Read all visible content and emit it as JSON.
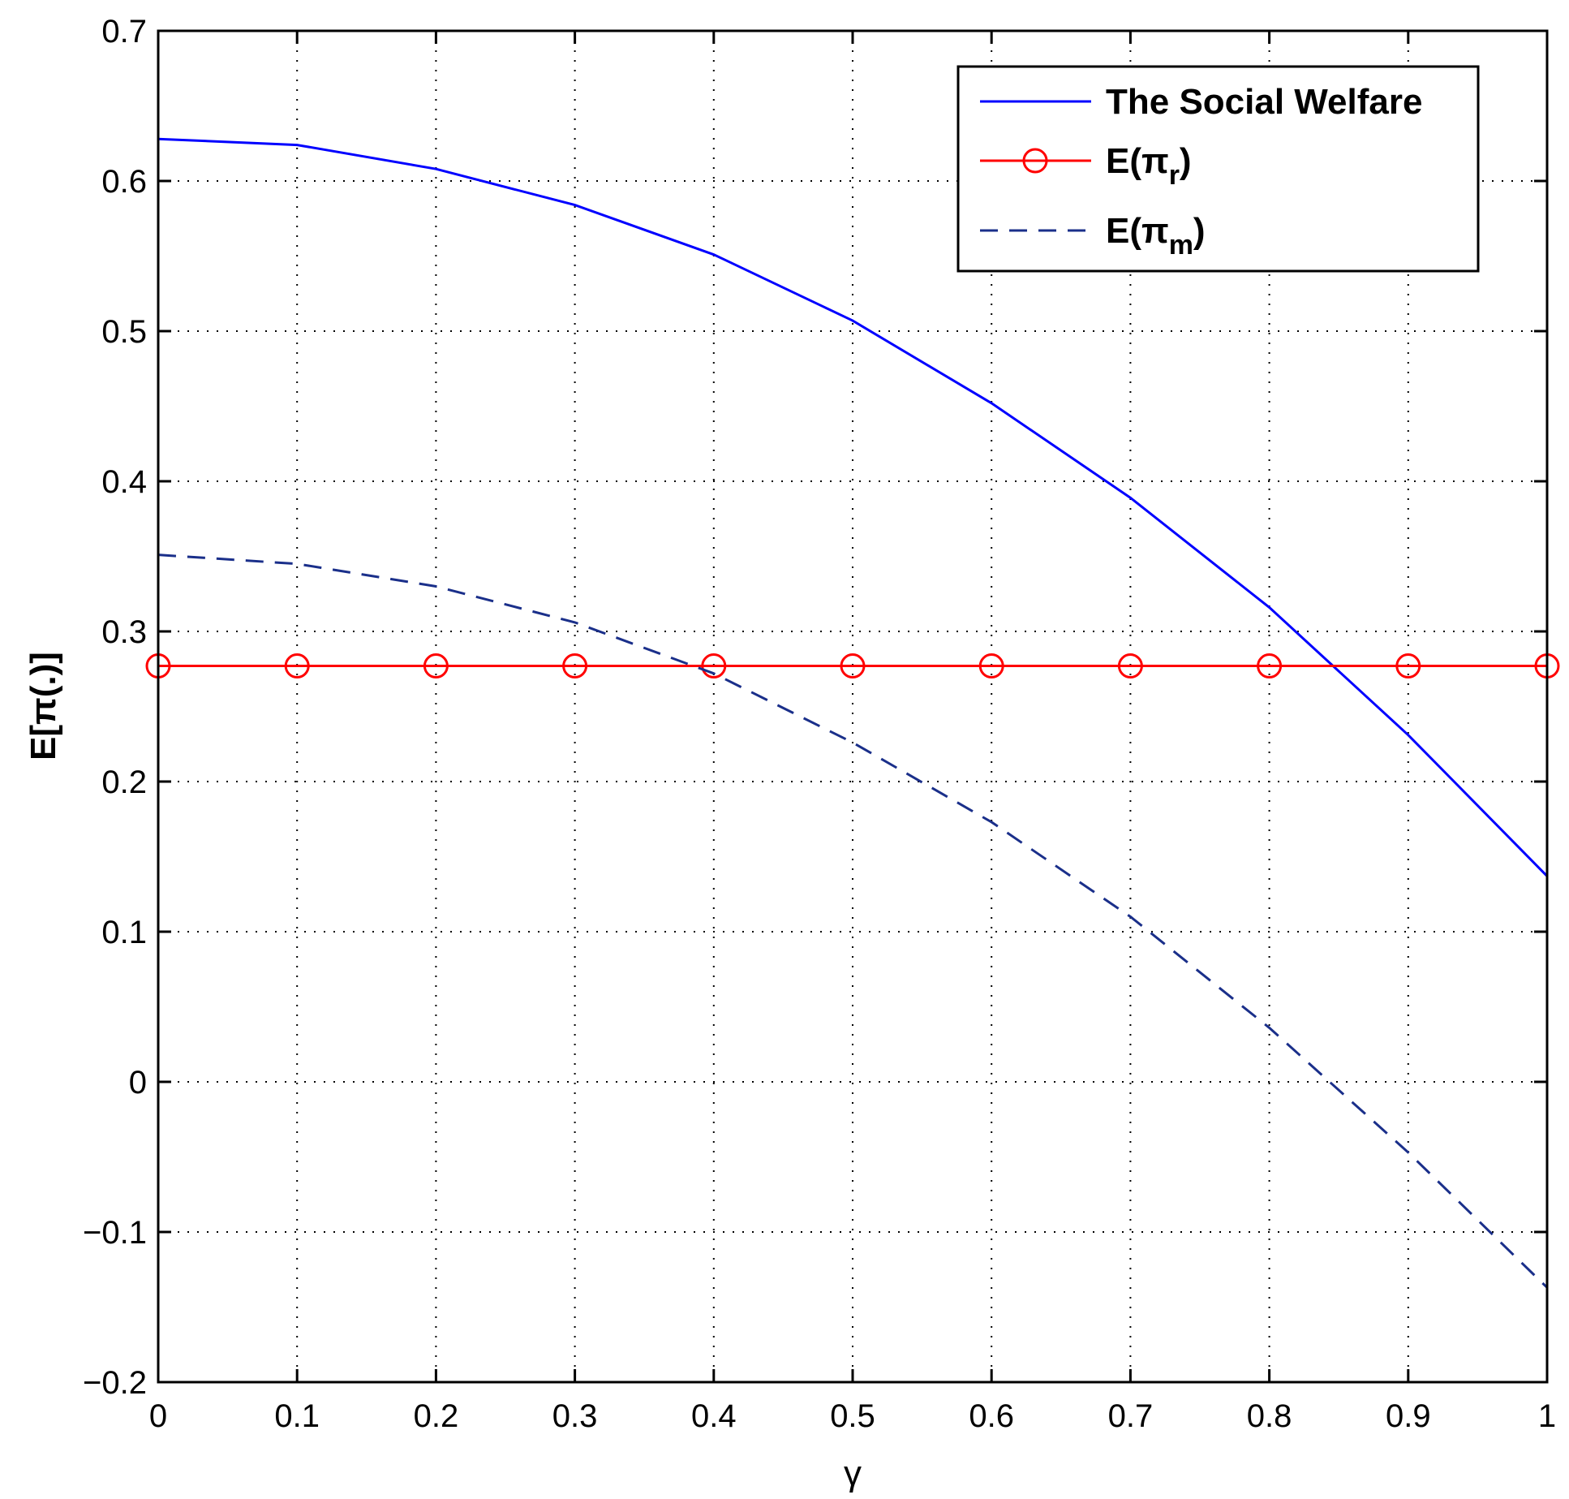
{
  "chart_data": {
    "type": "line",
    "xlabel": "γ",
    "ylabel": "E[π(.)]",
    "xlim": [
      0,
      1
    ],
    "ylim": [
      -0.2,
      0.7
    ],
    "x_ticks": [
      "0",
      "0.1",
      "0.2",
      "0.3",
      "0.4",
      "0.5",
      "0.6",
      "0.7",
      "0.8",
      "0.9",
      "1"
    ],
    "y_ticks": [
      "−0.2",
      "−0.1",
      "0",
      "0.1",
      "0.2",
      "0.3",
      "0.4",
      "0.5",
      "0.6",
      "0.7"
    ],
    "grid": true,
    "legend_position": "top-right",
    "x": [
      0,
      0.1,
      0.2,
      0.3,
      0.4,
      0.5,
      0.6,
      0.7,
      0.8,
      0.9,
      1.0
    ],
    "series": [
      {
        "name": "The Social Welfare",
        "legend_main": "The Social Welfare",
        "legend_sub": "",
        "legend_tail": "",
        "color": "#0000ff",
        "style": "solid",
        "marker": "none",
        "values": [
          0.628,
          0.624,
          0.608,
          0.584,
          0.551,
          0.507,
          0.452,
          0.389,
          0.316,
          0.231,
          0.137
        ]
      },
      {
        "name": "E(πr)",
        "legend_main": "E(π",
        "legend_sub": "r",
        "legend_tail": ")",
        "color": "#ff0000",
        "style": "solid",
        "marker": "circle",
        "values": [
          0.277,
          0.277,
          0.277,
          0.277,
          0.277,
          0.277,
          0.277,
          0.277,
          0.277,
          0.277,
          0.277
        ]
      },
      {
        "name": "E(πm)",
        "legend_main": "E(π",
        "legend_sub": "m",
        "legend_tail": ")",
        "color": "#1a2f8a",
        "style": "dashed",
        "marker": "none",
        "values": [
          0.351,
          0.345,
          0.33,
          0.306,
          0.272,
          0.226,
          0.173,
          0.11,
          0.036,
          -0.047,
          -0.137
        ]
      }
    ]
  }
}
